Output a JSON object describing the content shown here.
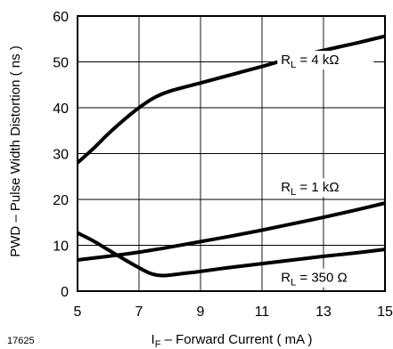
{
  "chart_data": {
    "type": "line",
    "xlabel": {
      "main": "I",
      "sub": "F",
      "rest": " – Forward Current ( mA )"
    },
    "ylabel": "PWD – Pulse Width Distortion ( ns )",
    "xlim": [
      5,
      15
    ],
    "ylim": [
      0,
      60
    ],
    "xticks": [
      5,
      7,
      9,
      11,
      13,
      15
    ],
    "yticks": [
      0,
      10,
      20,
      30,
      40,
      50,
      60
    ],
    "grid": true,
    "figure_id": "17625",
    "series": [
      {
        "label": {
          "main": "R",
          "sub": "L",
          "rest": " = 4 kΩ"
        },
        "points": [
          [
            5,
            28
          ],
          [
            5.5,
            31
          ],
          [
            6,
            34.3
          ],
          [
            6.5,
            37.3
          ],
          [
            7,
            40
          ],
          [
            7.5,
            42.2
          ],
          [
            8,
            43.6
          ],
          [
            9,
            45.4
          ],
          [
            10,
            47.2
          ],
          [
            11,
            49
          ],
          [
            12,
            50.9
          ],
          [
            13,
            52.5
          ],
          [
            14,
            54
          ],
          [
            15,
            55.6
          ]
        ]
      },
      {
        "label": {
          "main": "R",
          "sub": "L",
          "rest": " = 1 kΩ"
        },
        "points": [
          [
            5,
            6.8
          ],
          [
            6,
            7.6
          ],
          [
            7,
            8.5
          ],
          [
            8,
            9.6
          ],
          [
            9,
            10.8
          ],
          [
            10,
            12
          ],
          [
            11,
            13.3
          ],
          [
            12,
            14.7
          ],
          [
            13,
            16.1
          ],
          [
            14,
            17.6
          ],
          [
            15,
            19.2
          ]
        ]
      },
      {
        "label": {
          "main": "R",
          "sub": "L",
          "rest": " = 350 Ω"
        },
        "points": [
          [
            5,
            12.7
          ],
          [
            5.5,
            11
          ],
          [
            6,
            9
          ],
          [
            6.5,
            7
          ],
          [
            7,
            5.1
          ],
          [
            7.4,
            3.8
          ],
          [
            7.8,
            3.4
          ],
          [
            8.5,
            3.9
          ],
          [
            9,
            4.3
          ],
          [
            10,
            5.2
          ],
          [
            11,
            6
          ],
          [
            12,
            6.8
          ],
          [
            13,
            7.6
          ],
          [
            14,
            8.3
          ],
          [
            15,
            9.1
          ]
        ]
      }
    ]
  }
}
